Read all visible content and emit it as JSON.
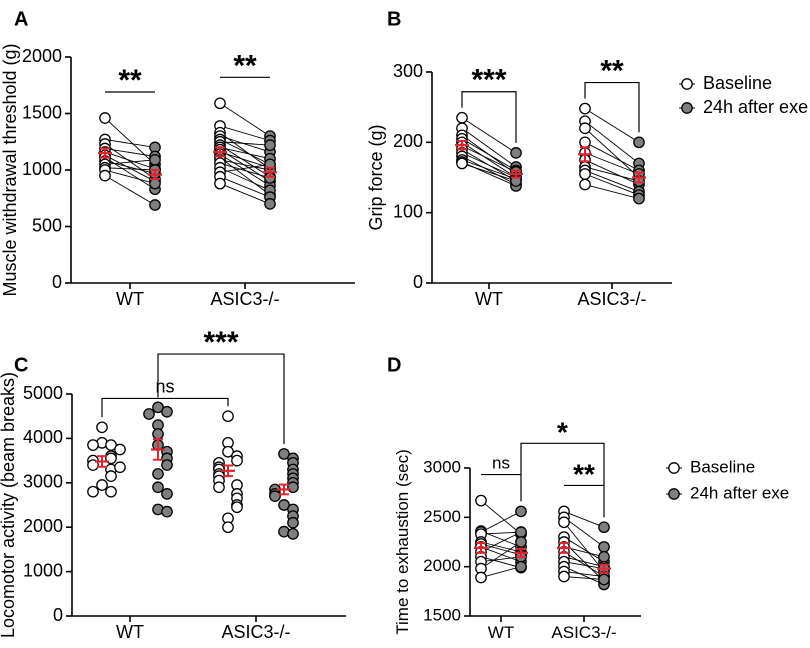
{
  "style": {
    "open_fill": "#ffffff",
    "closed_fill": "#7f7f7f",
    "marker_stroke": "#000000",
    "mean_color": "#e0252f",
    "line_color": "#000000"
  },
  "legend": [
    {
      "label": "Baseline",
      "marker": "open"
    },
    {
      "label": "24h after exe",
      "marker": "closed"
    }
  ],
  "chart_data": [
    {
      "id": "A",
      "panel_label": "A",
      "type": "scatter",
      "design": "paired",
      "ylabel": "Muscle withdrawal threshold (g)",
      "ylim": [
        0,
        2000
      ],
      "yticks": [
        0,
        500,
        1000,
        1500,
        2000
      ],
      "categories": [
        "WT",
        "ASIC3-/-"
      ],
      "groups": [
        {
          "category": "WT",
          "baseline": [
            1460,
            1270,
            1230,
            1190,
            1160,
            1130,
            1110,
            1080,
            1050,
            1020,
            1000,
            950
          ],
          "after": [
            1050,
            1200,
            920,
            1120,
            1010,
            900,
            830,
            970,
            1090,
            1000,
            880,
            690
          ],
          "baseline_mean": 1150,
          "baseline_sem": 40,
          "after_mean": 960,
          "after_sem": 40
        },
        {
          "category": "ASIC3-/-",
          "baseline": [
            1590,
            1390,
            1330,
            1300,
            1270,
            1250,
            1220,
            1200,
            1180,
            1160,
            1140,
            1110,
            1090,
            1060,
            1020,
            980,
            940,
            880
          ],
          "after": [
            1300,
            1260,
            1010,
            1160,
            1050,
            1220,
            940,
            1100,
            900,
            1020,
            860,
            780,
            1000,
            930,
            820,
            1050,
            760,
            700
          ],
          "baseline_mean": 1160,
          "baseline_sem": 40,
          "after_mean": 980,
          "after_sem": 40
        }
      ],
      "annotations": [
        {
          "text": "**",
          "group": 0,
          "target": "pair",
          "style": "bar"
        },
        {
          "text": "**",
          "group": 1,
          "target": "pair",
          "style": "bar"
        }
      ]
    },
    {
      "id": "B",
      "panel_label": "B",
      "type": "scatter",
      "design": "paired",
      "ylabel": "Grip force (g)",
      "ylim": [
        0,
        300
      ],
      "yticks": [
        0,
        100,
        200,
        300
      ],
      "categories": [
        "WT",
        "ASIC3-/-"
      ],
      "groups": [
        {
          "category": "WT",
          "baseline": [
            235,
            220,
            210,
            205,
            200,
            195,
            190,
            185,
            180,
            175,
            172,
            170
          ],
          "after": [
            185,
            165,
            155,
            160,
            150,
            158,
            145,
            150,
            140,
            148,
            138,
            145
          ],
          "baseline_mean": 196,
          "baseline_sem": 6,
          "after_mean": 155,
          "after_sem": 5
        },
        {
          "category": "ASIC3-/-",
          "baseline": [
            248,
            230,
            220,
            200,
            185,
            175,
            165,
            160,
            155,
            140
          ],
          "after": [
            200,
            170,
            150,
            160,
            155,
            140,
            145,
            130,
            125,
            120
          ],
          "baseline_mean": 183,
          "baseline_sem": 10,
          "after_mean": 150,
          "after_sem": 7
        }
      ],
      "annotations": [
        {
          "text": "***",
          "group": 0,
          "target": "pair",
          "style": "bracket"
        },
        {
          "text": "**",
          "group": 1,
          "target": "pair",
          "style": "bracket"
        }
      ]
    },
    {
      "id": "C",
      "panel_label": "C",
      "type": "scatter",
      "design": "unpaired",
      "ylabel": "Locomotor activity (beam breaks)",
      "ylim": [
        0,
        5000
      ],
      "yticks": [
        0,
        1000,
        2000,
        3000,
        4000,
        5000
      ],
      "categories": [
        "WT",
        "ASIC3-/-"
      ],
      "groups": [
        {
          "category": "WT",
          "baseline": [
            4250,
            3900,
            3850,
            3850,
            3750,
            3600,
            3550,
            3500,
            3400,
            3300,
            3150,
            2950,
            2800,
            2800,
            3350
          ],
          "after": [
            4700,
            4600,
            4550,
            4300,
            4100,
            3850,
            3700,
            3550,
            3400,
            3200,
            2900,
            2750,
            2400,
            2350
          ],
          "baseline_mean": 3480,
          "baseline_sem": 120,
          "after_mean": 3750,
          "after_sem": 230
        },
        {
          "category": "ASIC3-/-",
          "baseline": [
            4500,
            3900,
            3700,
            3600,
            3500,
            3450,
            3350,
            3300,
            3200,
            3150,
            3050,
            2950,
            2900,
            2750,
            2650,
            2500,
            2450,
            2200,
            2000
          ],
          "after": [
            3650,
            3550,
            3450,
            3300,
            3200,
            3100,
            3000,
            2900,
            2850,
            2750,
            2700,
            2500,
            2400,
            2250,
            2100,
            1900,
            1850
          ],
          "baseline_mean": 3270,
          "baseline_sem": 120,
          "after_mean": 2850,
          "after_sem": 110
        }
      ],
      "annotations": [
        {
          "text": "ns",
          "from": [
            0,
            "baseline"
          ],
          "to": [
            1,
            "baseline"
          ],
          "level": 4900,
          "style": "bracket"
        },
        {
          "text": "***",
          "from": [
            0,
            "after"
          ],
          "to": [
            1,
            "after"
          ],
          "level": 5900,
          "style": "bracket"
        }
      ]
    },
    {
      "id": "D",
      "panel_label": "D",
      "type": "scatter",
      "design": "paired",
      "ylabel": "Time to exhaustion (sec)",
      "ylim": [
        1500,
        3000
      ],
      "yticks": [
        1500,
        2000,
        2500,
        3000
      ],
      "categories": [
        "WT",
        "ASIC3-/-"
      ],
      "groups": [
        {
          "category": "WT",
          "baseline": [
            2670,
            2360,
            2350,
            2330,
            2250,
            2230,
            2200,
            2150,
            2100,
            2050,
            1980,
            1890
          ],
          "after": [
            2330,
            2200,
            2560,
            2350,
            2150,
            2120,
            2050,
            2350,
            1990,
            2100,
            2250,
            2000
          ],
          "baseline_mean": 2190,
          "baseline_sem": 50,
          "after_mean": 2140,
          "after_sem": 40
        },
        {
          "category": "ASIC3-/-",
          "baseline": [
            2560,
            2500,
            2450,
            2300,
            2250,
            2200,
            2150,
            2100,
            2050,
            2000,
            1950,
            1900
          ],
          "after": [
            2400,
            2200,
            1950,
            2050,
            1850,
            2100,
            1900,
            2000,
            1980,
            1820,
            1900,
            1870
          ],
          "baseline_mean": 2190,
          "baseline_sem": 50,
          "after_mean": 1980,
          "after_sem": 40
        }
      ],
      "annotations": [
        {
          "text": "ns",
          "group": 0,
          "target": "pair",
          "style": "bar"
        },
        {
          "text": "**",
          "group": 1,
          "target": "pair",
          "style": "bar"
        },
        {
          "text": "*",
          "from": [
            0,
            "after"
          ],
          "to": [
            1,
            "after"
          ],
          "level": 3250,
          "style": "bracket"
        }
      ]
    }
  ]
}
